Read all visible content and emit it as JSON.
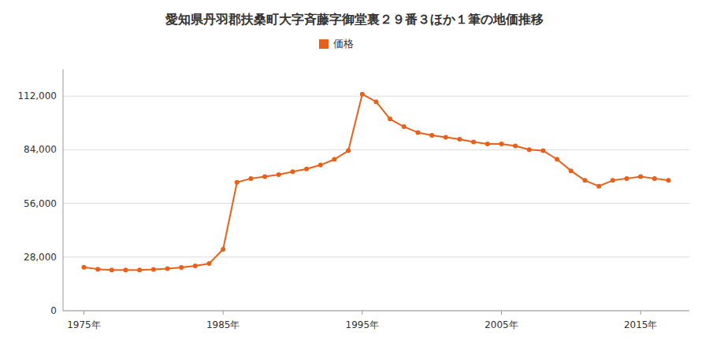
{
  "chart_data": {
    "type": "line",
    "title": "愛知県丹羽郡扶桑町大字斉藤字御堂裏２９番３ほか１筆の地価推移",
    "x": [
      1975,
      1976,
      1977,
      1978,
      1979,
      1980,
      1981,
      1982,
      1983,
      1984,
      1985,
      1986,
      1987,
      1988,
      1989,
      1990,
      1991,
      1992,
      1993,
      1994,
      1995,
      1996,
      1997,
      1998,
      1999,
      2000,
      2001,
      2002,
      2003,
      2004,
      2005,
      2006,
      2007,
      2008,
      2009,
      2010,
      2011,
      2012,
      2013,
      2014,
      2015,
      2016,
      2017
    ],
    "series": [
      {
        "name": "価格",
        "color": "#e8611a",
        "marker": "circle",
        "values": [
          22700,
          21700,
          21200,
          21200,
          21200,
          21500,
          22000,
          22600,
          23400,
          24600,
          32000,
          67000,
          69000,
          70000,
          71000,
          72500,
          74000,
          76000,
          79000,
          83500,
          113000,
          109000,
          100000,
          96000,
          93000,
          91500,
          90500,
          89500,
          88000,
          87000,
          87000,
          86000,
          84000,
          83500,
          79000,
          73000,
          68000,
          65000,
          68000,
          69000,
          70000,
          69000,
          68000
        ]
      }
    ],
    "xlim": [
      1973.5,
      2018.5
    ],
    "xticks": [
      {
        "value": 1975,
        "label": "1975年"
      },
      {
        "value": 1985,
        "label": "1985年"
      },
      {
        "value": 1995,
        "label": "1995年"
      },
      {
        "value": 2005,
        "label": "2005年"
      },
      {
        "value": 2015,
        "label": "2015年"
      }
    ],
    "ylim": [
      0,
      126000
    ],
    "yticks": [
      0,
      {
        "value": 28000,
        "label": "28,000"
      },
      {
        "value": 56000,
        "label": "56,000"
      },
      {
        "value": 84000,
        "label": "84,000"
      },
      {
        "value": 112000,
        "label": "112,000"
      }
    ],
    "grid": true,
    "legend": "top"
  }
}
